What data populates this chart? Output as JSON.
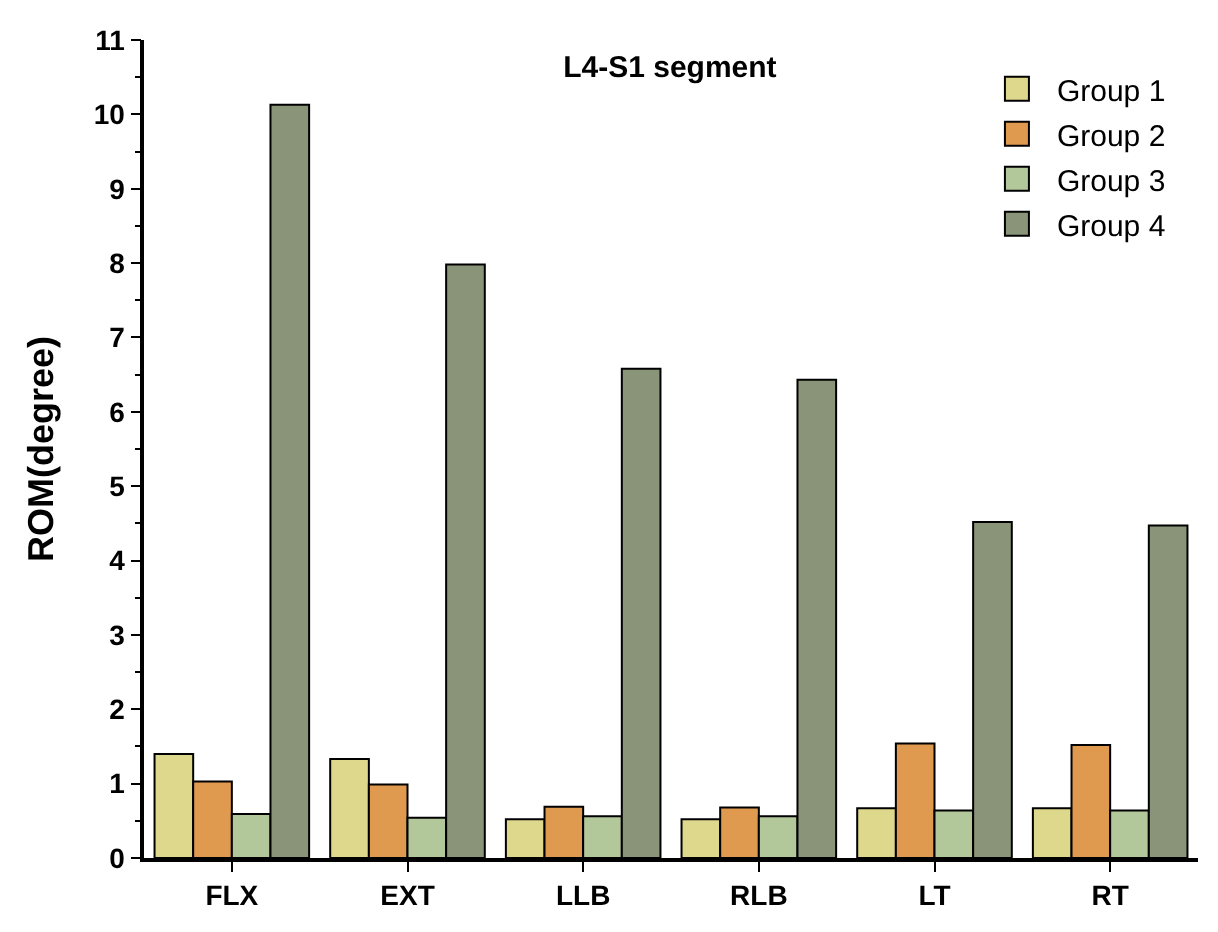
{
  "chart_data": {
    "type": "bar",
    "title": "L4-S1 segment",
    "ylabel": "ROM(degree)",
    "categories": [
      "FLX",
      "EXT",
      "LLB",
      "RLB",
      "LT",
      "RT"
    ],
    "series": [
      {
        "name": "Group 1",
        "color": "#ded88c",
        "values": [
          1.4,
          1.33,
          0.52,
          0.52,
          0.67,
          0.67
        ]
      },
      {
        "name": "Group 2",
        "color": "#e09a50",
        "values": [
          1.03,
          0.99,
          0.69,
          0.68,
          1.54,
          1.52
        ]
      },
      {
        "name": "Group 3",
        "color": "#b3c89a",
        "values": [
          0.59,
          0.54,
          0.56,
          0.56,
          0.64,
          0.64
        ]
      },
      {
        "name": "Group 4",
        "color": "#8a9478",
        "values": [
          10.13,
          7.98,
          6.58,
          6.43,
          4.52,
          4.47
        ]
      }
    ],
    "ylim": [
      0,
      11
    ],
    "yticks": [
      0,
      1,
      2,
      3,
      4,
      5,
      6,
      7,
      8,
      9,
      10,
      11
    ],
    "legend": "top right"
  }
}
